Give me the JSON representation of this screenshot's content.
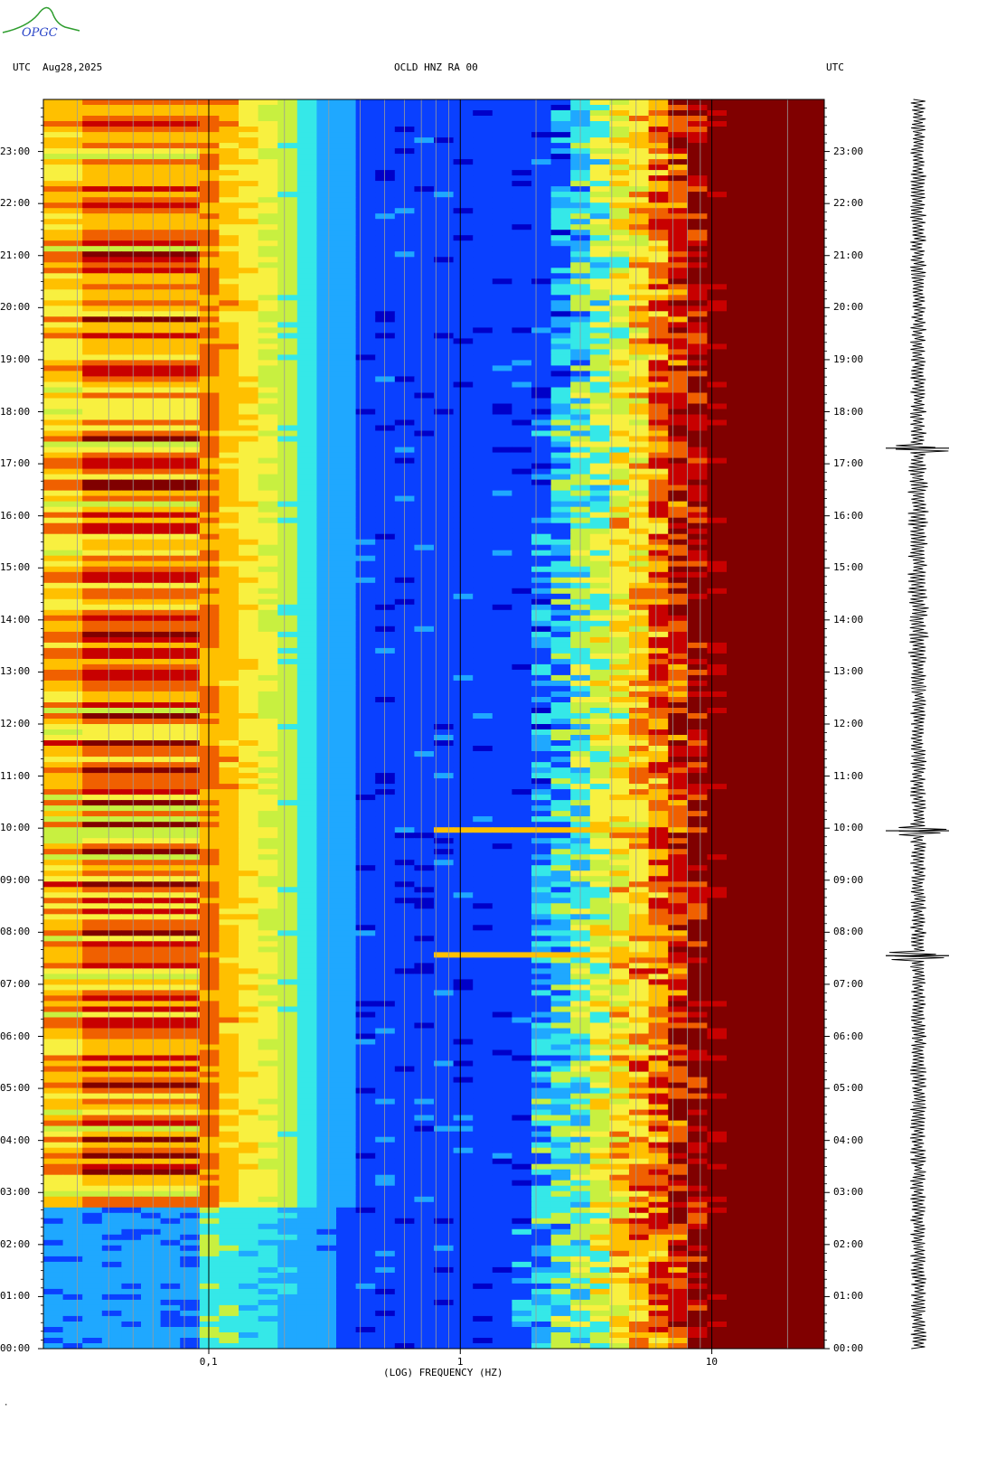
{
  "header": {
    "left_zone": "UTC",
    "date": "Aug28,2025",
    "station": "OCLD HNZ RA 00",
    "right_zone": "UTC"
  },
  "logo": {
    "text": "OPGC"
  },
  "footer": {
    "mark": "·"
  },
  "chart_data": {
    "type": "heatmap",
    "title": "OCLD HNZ RA 00",
    "xlabel": "(LOG) FREQUENCY (HZ)",
    "ylabel": "UTC",
    "x_scale": "log",
    "xlim": [
      0.022,
      28
    ],
    "x_ticks": [
      {
        "value": 0.1,
        "label": "0,1"
      },
      {
        "value": 1,
        "label": "1"
      },
      {
        "value": 10,
        "label": "10"
      }
    ],
    "ylim_hours": [
      0,
      24
    ],
    "y_ticks": [
      "00:00",
      "01:00",
      "02:00",
      "03:00",
      "04:00",
      "05:00",
      "06:00",
      "07:00",
      "08:00",
      "09:00",
      "10:00",
      "11:00",
      "12:00",
      "13:00",
      "14:00",
      "15:00",
      "16:00",
      "17:00",
      "18:00",
      "19:00",
      "20:00",
      "21:00",
      "22:00",
      "23:00"
    ],
    "colormap": [
      "#0000c8",
      "#0a40ff",
      "#1fa8ff",
      "#35e8e8",
      "#c8f040",
      "#f8f040",
      "#ffc000",
      "#f06000",
      "#c80000",
      "#800000"
    ],
    "notable_events_utc_hours": [
      7.55,
      9.95
    ],
    "annotation_features": {
      "low_freq_band_active_hours": [
        2.7,
        24.0
      ],
      "high_freq_saturation_hz": 10.5
    },
    "waveform_trace": {
      "side": "right",
      "channel": "HNZ",
      "spikes_utc_hours": [
        7.55,
        9.95,
        17.3
      ]
    }
  }
}
